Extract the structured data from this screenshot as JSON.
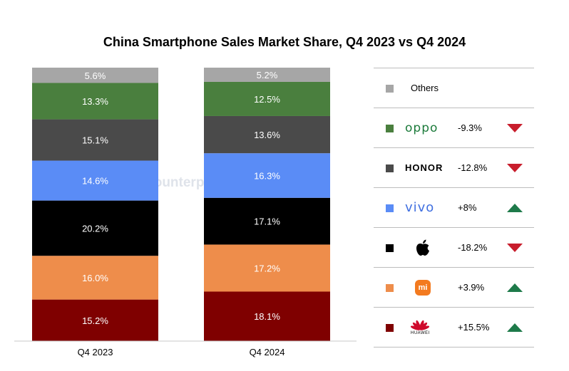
{
  "title": "China Smartphone Sales Market Share, Q4 2023 vs Q4 2024",
  "watermark": "Counterpoint",
  "chart_data": {
    "type": "bar",
    "stacked": true,
    "title": "China Smartphone Sales Market Share, Q4 2023 vs Q4 2024",
    "categories": [
      "Q4 2023",
      "Q4 2024"
    ],
    "ylim": [
      0,
      100
    ],
    "series": [
      {
        "name": "HUAWEI",
        "color": "#7f0000",
        "values": [
          15.2,
          18.1
        ],
        "labels": [
          "15.2%",
          "18.1%"
        ]
      },
      {
        "name": "mi",
        "color": "#ee8d4b",
        "values": [
          16.0,
          17.2
        ],
        "labels": [
          "16.0%",
          "17.2%"
        ]
      },
      {
        "name": "apple",
        "color": "#000000",
        "values": [
          20.2,
          17.1
        ],
        "labels": [
          "20.2%",
          "17.1%"
        ]
      },
      {
        "name": "vivo",
        "color": "#5a8cf6",
        "values": [
          14.6,
          16.3
        ],
        "labels": [
          "14.6%",
          "16.3%"
        ]
      },
      {
        "name": "HONOR",
        "color": "#4a4a4a",
        "values": [
          15.1,
          13.6
        ],
        "labels": [
          "15.1%",
          "13.6%"
        ]
      },
      {
        "name": "oppo",
        "color": "#4a7f3e",
        "values": [
          13.3,
          12.5
        ],
        "labels": [
          "13.3%",
          "12.5%"
        ]
      },
      {
        "name": "Others",
        "color": "#a6a6a6",
        "values": [
          5.6,
          5.2
        ],
        "labels": [
          "5.6%",
          "5.2%"
        ]
      }
    ],
    "grid": false,
    "legend_position": "right"
  },
  "legend": [
    {
      "brand": "Others",
      "color": "#a6a6a6",
      "change": "",
      "direction": "none",
      "icon": "others-label"
    },
    {
      "brand": "oppo",
      "color": "#4a7f3e",
      "change": "-9.3%",
      "direction": "down",
      "icon": "oppo-logo"
    },
    {
      "brand": "HONOR",
      "color": "#4a4a4a",
      "change": "-12.8%",
      "direction": "down",
      "icon": "honor-logo"
    },
    {
      "brand": "vivo",
      "color": "#5a8cf6",
      "change": "+8%",
      "direction": "up",
      "icon": "vivo-logo"
    },
    {
      "brand": "",
      "color": "#000000",
      "change": "-18.2%",
      "direction": "down",
      "icon": "apple-logo"
    },
    {
      "brand": "mi",
      "color": "#ee8d4b",
      "change": "+3.9%",
      "direction": "up",
      "icon": "xiaomi-logo"
    },
    {
      "brand": "HUAWEI",
      "color": "#7f0000",
      "change": "+15.5%",
      "direction": "up",
      "icon": "huawei-logo"
    }
  ],
  "colors": {
    "up": "#1e7a4a",
    "down": "#c81d2c",
    "divider": "#bdbdbd"
  }
}
